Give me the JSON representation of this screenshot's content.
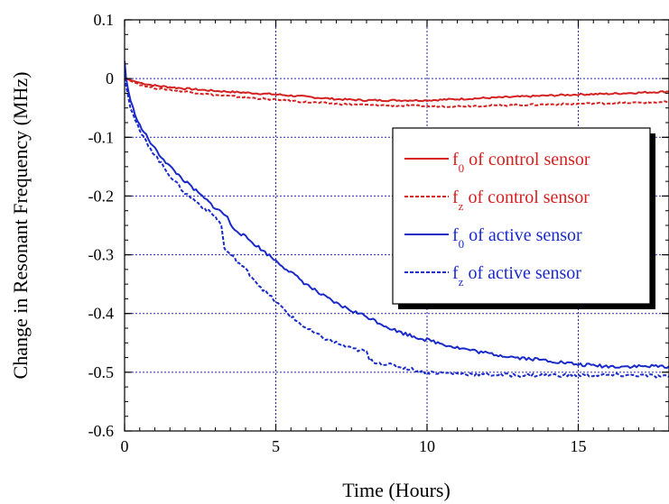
{
  "chart_data": {
    "type": "line",
    "title": "",
    "xlabel": "Time (Hours)",
    "ylabel": "Change in Resonant Frequency (MHz)",
    "xlim": [
      0,
      18
    ],
    "ylim": [
      -0.6,
      0.1
    ],
    "xticks": [
      0,
      5,
      10,
      15
    ],
    "xtick_labels": [
      "0",
      "5",
      "10",
      "15"
    ],
    "yticks": [
      0.1,
      0,
      -0.1,
      -0.2,
      -0.3,
      -0.4,
      -0.5,
      -0.6
    ],
    "ytick_labels": [
      "0.1",
      "0",
      "-0.1",
      "-0.2",
      "-0.3",
      "-0.4",
      "-0.5",
      "-0.6"
    ],
    "grid": true,
    "legend_position": "right",
    "series": [
      {
        "legend_main": "f",
        "legend_sub": "0",
        "legend_rest": " of control sensor",
        "color": "#d42020",
        "dash": "solid",
        "x": [
          0,
          0.5,
          1,
          2,
          3,
          4,
          5,
          6,
          7,
          7.5,
          8,
          9,
          10,
          11,
          12,
          13,
          14,
          15,
          16,
          17,
          18
        ],
        "y": [
          0,
          -0.007,
          -0.012,
          -0.017,
          -0.021,
          -0.024,
          -0.027,
          -0.031,
          -0.035,
          -0.036,
          -0.037,
          -0.037,
          -0.037,
          -0.035,
          -0.033,
          -0.031,
          -0.029,
          -0.027,
          -0.026,
          -0.024,
          -0.022
        ]
      },
      {
        "legend_main": "f",
        "legend_sub": "z",
        "legend_rest": " of control sensor",
        "color": "#d42020",
        "dash": "dashed",
        "x": [
          0,
          0.5,
          1,
          2,
          3,
          4,
          5,
          6,
          7,
          8,
          9,
          10,
          11,
          12,
          13,
          14,
          15,
          16,
          17,
          18
        ],
        "y": [
          0,
          -0.01,
          -0.016,
          -0.022,
          -0.028,
          -0.032,
          -0.036,
          -0.04,
          -0.043,
          -0.045,
          -0.046,
          -0.047,
          -0.047,
          -0.046,
          -0.045,
          -0.044,
          -0.043,
          -0.042,
          -0.041,
          -0.04
        ]
      },
      {
        "legend_main": "f",
        "legend_sub": "0",
        "legend_rest": " of active sensor",
        "color": "#1a2bc8",
        "dash": "solid",
        "x": [
          0,
          0.05,
          0.2,
          0.5,
          1,
          1.5,
          2,
          2.5,
          3,
          3.4,
          3.5,
          4,
          4.5,
          5,
          5.5,
          6,
          6.5,
          7,
          7.5,
          8,
          8.5,
          9,
          9.5,
          10,
          11,
          12,
          13,
          14,
          15,
          16,
          17,
          18
        ],
        "y": [
          0.03,
          0.0,
          -0.04,
          -0.08,
          -0.12,
          -0.15,
          -0.175,
          -0.198,
          -0.22,
          -0.235,
          -0.25,
          -0.27,
          -0.29,
          -0.31,
          -0.33,
          -0.35,
          -0.368,
          -0.383,
          -0.395,
          -0.405,
          -0.418,
          -0.43,
          -0.438,
          -0.445,
          -0.458,
          -0.468,
          -0.475,
          -0.48,
          -0.487,
          -0.49,
          -0.49,
          -0.49
        ]
      },
      {
        "legend_main": "f",
        "legend_sub": "z",
        "legend_rest": " of active sensor",
        "color": "#1a2bc8",
        "dash": "dashed",
        "x": [
          0,
          0.05,
          0.2,
          0.5,
          1,
          1.5,
          2,
          2.5,
          3,
          3.2,
          3.3,
          3.5,
          4,
          4.5,
          5,
          5.5,
          6,
          6.5,
          7,
          7.5,
          8,
          8.1,
          8.5,
          9,
          9.5,
          10,
          11,
          12,
          13,
          14,
          15,
          16,
          17,
          18
        ],
        "y": [
          0.02,
          -0.01,
          -0.05,
          -0.09,
          -0.13,
          -0.165,
          -0.195,
          -0.215,
          -0.235,
          -0.25,
          -0.29,
          -0.3,
          -0.325,
          -0.355,
          -0.38,
          -0.405,
          -0.425,
          -0.44,
          -0.45,
          -0.46,
          -0.465,
          -0.48,
          -0.485,
          -0.49,
          -0.495,
          -0.5,
          -0.502,
          -0.504,
          -0.505,
          -0.505,
          -0.505,
          -0.505,
          -0.505,
          -0.508
        ]
      }
    ]
  }
}
